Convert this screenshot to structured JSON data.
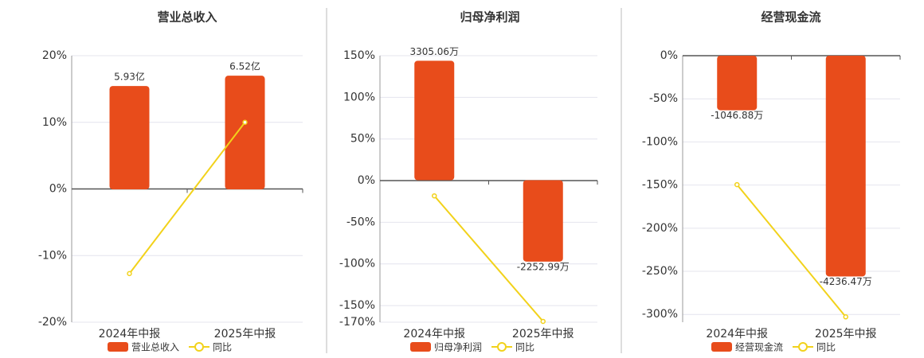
{
  "chart_data": [
    {
      "type": "bar-line",
      "title": "营业总收入",
      "categories": [
        "2024年中报",
        "2025年中报"
      ],
      "series": [
        {
          "name": "营业总收入",
          "color": "#e84c1b",
          "values": [
            5.93,
            6.52
          ],
          "value_labels": [
            "5.93亿",
            "6.52亿"
          ],
          "axis": "y2"
        },
        {
          "name": "同比",
          "color": "#f2d21b",
          "values": [
            -12.7,
            10.0
          ]
        }
      ],
      "ylim": [
        -20,
        20
      ],
      "yticks": [
        {
          "value": 20,
          "label": "20%"
        },
        {
          "value": 10,
          "label": "10%"
        },
        {
          "value": 0,
          "label": "0%"
        },
        {
          "value": -10,
          "label": "-10%"
        },
        {
          "value": -20,
          "label": "-20%"
        }
      ],
      "y2lim": [
        -7.63,
        7.67
      ],
      "grid": true
    },
    {
      "type": "bar-line",
      "title": "归母净利润",
      "categories": [
        "2024年中报",
        "2025年中报"
      ],
      "series": [
        {
          "name": "归母净利润",
          "color": "#e84c1b",
          "values": [
            3305.06,
            -2252.99
          ],
          "value_labels": [
            "3305.06万",
            "-2252.99万"
          ],
          "axis": "y2"
        },
        {
          "name": "同比",
          "color": "#f2d21b",
          "values": [
            -18.3,
            -169
          ]
        }
      ],
      "ylim": [
        -170,
        150
      ],
      "yticks": [
        {
          "value": 150,
          "label": "150%"
        },
        {
          "value": 100,
          "label": "100%"
        },
        {
          "value": 50,
          "label": "50%"
        },
        {
          "value": 0,
          "label": "0%"
        },
        {
          "value": -50,
          "label": "-50%"
        },
        {
          "value": -100,
          "label": "-100%"
        },
        {
          "value": -150,
          "label": "-150%"
        },
        {
          "value": -170,
          "label": "-170%"
        }
      ],
      "y2lim": [
        -3930,
        3445
      ],
      "grid": true
    },
    {
      "type": "bar-line",
      "title": "经营现金流",
      "categories": [
        "2024年中报",
        "2025年中报"
      ],
      "series": [
        {
          "name": "经营现金流",
          "color": "#e84c1b",
          "values": [
            -1046.88,
            -4236.47
          ],
          "value_labels": [
            "-1046.88万",
            "-4236.47万"
          ],
          "axis": "y2"
        },
        {
          "name": "同比",
          "color": "#f2d21b",
          "values": [
            -149.5,
            -302.8
          ]
        }
      ],
      "ylim": [
        -309,
        0
      ],
      "yticks": [
        {
          "value": 0,
          "label": "0%"
        },
        {
          "value": -50,
          "label": "-50%"
        },
        {
          "value": -100,
          "label": "-100%"
        },
        {
          "value": -150,
          "label": "-150%"
        },
        {
          "value": -200,
          "label": "-200%"
        },
        {
          "value": -250,
          "label": "-250%"
        },
        {
          "value": -300,
          "label": "-300%"
        }
      ],
      "y2lim": [
        -5115,
        0
      ],
      "grid": true
    }
  ]
}
